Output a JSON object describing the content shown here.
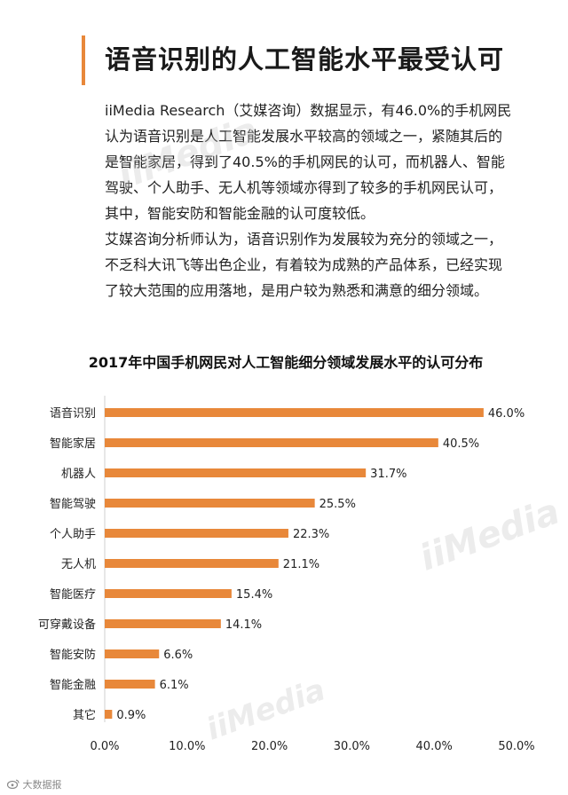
{
  "article": {
    "heading": "语音识别的人工智能水平最受认可",
    "paragraph_lines": [
      "iiMedia Research（艾媒咨询）数据显示，有46.0%的手机网民",
      "认为语音识别是人工智能发展水平较高的领域之一，紧随其后的",
      "是智能家居，得到了40.5%的手机网民的认可，而机器人、智能",
      "驾驶、个人助手、无人机等领域亦得到了较多的手机网民认可，",
      "其中，智能安防和智能金融的认可度较低。",
      "艾媒咨询分析师认为，语音识别作为发展较为充分的领域之一，",
      "不乏科大讯飞等出色企业，有着较为成熟的产品体系，已经实现",
      "了较大范围的应用落地，是用户较为熟悉和满意的细分领域。"
    ]
  },
  "colors": {
    "accent": "#E8883A",
    "bar": "#E8883A"
  },
  "footer": {
    "icon": "weibo-icon",
    "brand": "大数据报"
  },
  "watermarks": [
    "iiMedia",
    "iiMedia",
    "iiMedia"
  ],
  "chart_data": {
    "type": "bar",
    "orientation": "horizontal",
    "title": "2017年中国手机网民对人工智能细分领域发展水平的认可分布",
    "categories": [
      "语音识别",
      "智能家居",
      "机器人",
      "智能驾驶",
      "个人助手",
      "无人机",
      "智能医疗",
      "可穿戴设备",
      "智能安防",
      "智能金融",
      "其它"
    ],
    "values": [
      46.0,
      40.5,
      31.7,
      25.5,
      22.3,
      21.1,
      15.4,
      14.1,
      6.6,
      6.1,
      0.9
    ],
    "value_labels": [
      "46.0%",
      "40.5%",
      "31.7%",
      "25.5%",
      "22.3%",
      "21.1%",
      "15.4%",
      "14.1%",
      "6.6%",
      "6.1%",
      "0.9%"
    ],
    "x_ticks": [
      0,
      10,
      20,
      30,
      40,
      50
    ],
    "x_tick_labels": [
      "0.0%",
      "10.0%",
      "20.0%",
      "30.0%",
      "40.0%",
      "50.0%"
    ],
    "xlim": [
      0,
      50
    ],
    "xlabel": "",
    "ylabel": "",
    "grid": false,
    "legend": "none"
  }
}
